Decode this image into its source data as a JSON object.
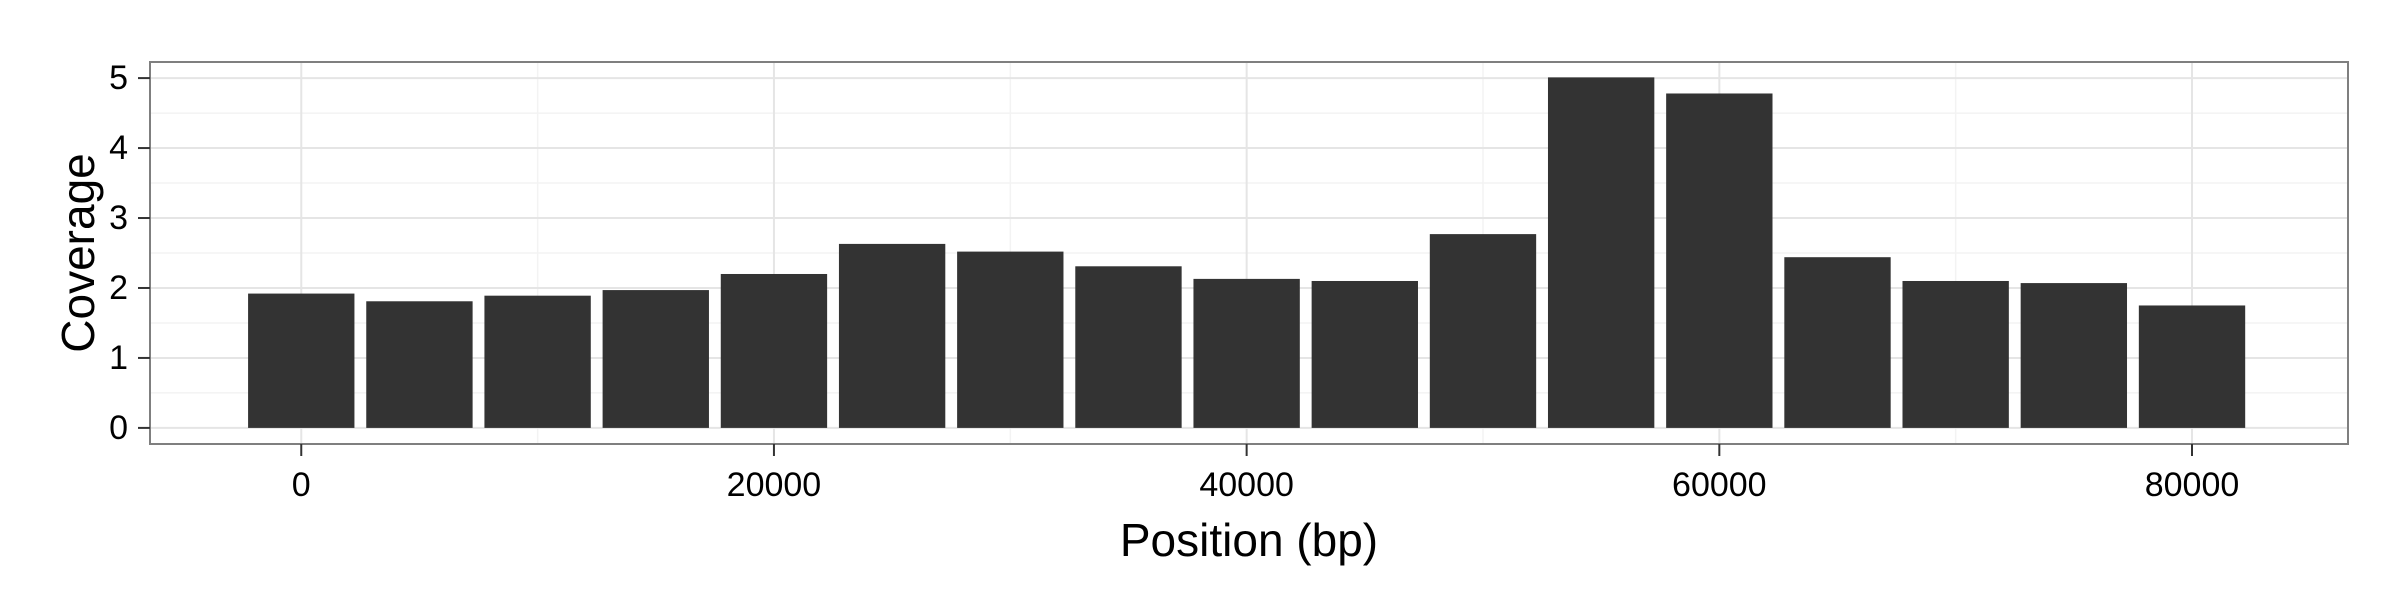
{
  "chart_data": {
    "type": "bar",
    "xlabel": "Position (bp)",
    "ylabel": "Coverage",
    "xlim": [
      -6400,
      86600
    ],
    "ylim": [
      -0.23,
      5.23
    ],
    "x_ticks": [
      0,
      20000,
      40000,
      60000,
      80000
    ],
    "y_ticks": [
      0,
      1,
      2,
      3,
      4,
      5
    ],
    "bar_width": 4500,
    "grid": true,
    "theme": "bw",
    "colors": {
      "bar": "#333333",
      "panel_border": "#7f7f7f",
      "grid_major": "#e5e5e5",
      "grid_minor": "#f3f3f3"
    },
    "x": [
      0,
      5000,
      10000,
      15000,
      20000,
      25000,
      30000,
      35000,
      40000,
      45000,
      50000,
      55000,
      60000,
      65000,
      70000,
      75000,
      80000
    ],
    "values": [
      1.92,
      1.81,
      1.89,
      1.97,
      2.2,
      2.63,
      2.52,
      2.31,
      2.13,
      2.1,
      2.77,
      5.01,
      4.78,
      2.44,
      2.1,
      2.07,
      1.75
    ]
  }
}
